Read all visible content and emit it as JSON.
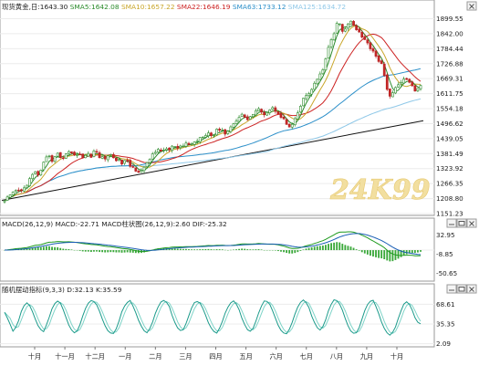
{
  "chart_data": [
    {
      "type": "candlestick",
      "panel": "price",
      "legend": [
        {
          "label": "现货黄金,日:1643.30",
          "color": "#222222"
        },
        {
          "label": "SMA5:1642.08",
          "color": "#2a8a2a"
        },
        {
          "label": "SMA10:1657.22",
          "color": "#c9a62a"
        },
        {
          "label": "SMA22:1646.19",
          "color": "#cc2222"
        },
        {
          "label": "SMA63:1733.12",
          "color": "#2b8fc9"
        },
        {
          "label": "SMA125:1634.72",
          "color": "#8fc8e8"
        }
      ],
      "ylim": [
        1151.23,
        1957.37
      ],
      "ytick_labels": [
        "1899.55",
        "1842.00",
        "1784.44",
        "1726.88",
        "1669.31",
        "1611.75",
        "1554.18",
        "1496.62",
        "1439.05",
        "1381.49",
        "1323.92",
        "1266.35",
        "1208.80",
        "1151.23"
      ],
      "xtick_labels": [
        "十月",
        "十一月",
        "十二月",
        "一月",
        "二月",
        "三月",
        "四月",
        "五月",
        "六月",
        "七月",
        "八月",
        "九月",
        "十月"
      ],
      "trendline": {
        "from": [
          0,
          1202
        ],
        "to": [
          1,
          1508
        ]
      },
      "watermark": "24K99",
      "close_series": [
        1200,
        1215,
        1228,
        1242,
        1235,
        1262,
        1288,
        1310,
        1298,
        1342,
        1372,
        1355,
        1388,
        1358,
        1378,
        1395,
        1372,
        1388,
        1362,
        1382,
        1372,
        1395,
        1368,
        1362,
        1378,
        1370,
        1358,
        1345,
        1356,
        1335,
        1322,
        1315,
        1320,
        1345,
        1378,
        1395,
        1388,
        1402,
        1395,
        1412,
        1398,
        1408,
        1422,
        1415,
        1428,
        1442,
        1455,
        1462,
        1448,
        1470,
        1482,
        1455,
        1478,
        1505,
        1520,
        1532,
        1512,
        1528,
        1542,
        1552,
        1534,
        1548,
        1556,
        1542,
        1522,
        1495,
        1478,
        1510,
        1552,
        1592,
        1612,
        1628,
        1662,
        1688,
        1735,
        1805,
        1842,
        1895,
        1845,
        1872,
        1895,
        1865,
        1845,
        1820,
        1798,
        1778,
        1748,
        1722,
        1648,
        1598,
        1625,
        1648,
        1672,
        1660,
        1642,
        1618,
        1643.3
      ],
      "macd_legend": "MACD(26,12,9) MACD:-22.71 MACD柱状图(26,12,9):2.60 DIF:-25.32",
      "macd_ylim": [
        -63.6,
        41.9
      ],
      "macd_ytick_labels": [
        "32.95",
        "-8.85",
        "-50.65"
      ],
      "stoch_legend": "随机摆动指标(9,3,3) D:32.13 K:35.59",
      "stoch_ylim": [
        0,
        86
      ],
      "stoch_ytick_labels": [
        "68.61",
        "35.35",
        "2.09"
      ],
      "stoch_k_series": [
        55,
        40,
        22,
        35,
        60,
        72,
        65,
        45,
        28,
        22,
        40,
        62,
        75,
        70,
        50,
        30,
        20,
        25,
        48,
        68,
        75,
        72,
        55,
        35,
        22,
        18,
        30,
        55,
        70,
        75,
        60,
        40,
        25,
        20,
        35,
        58,
        72,
        76,
        65,
        42,
        28,
        22,
        38,
        60,
        74,
        72,
        58,
        38,
        24,
        20,
        34,
        56,
        70,
        75,
        62,
        40,
        26,
        22,
        40,
        62,
        75,
        72,
        55,
        35,
        22,
        18,
        30,
        52,
        70,
        76,
        68,
        46,
        30,
        24,
        40,
        64,
        76,
        74,
        58,
        36,
        22,
        18,
        32,
        56,
        72,
        76,
        60,
        38,
        22,
        16,
        26,
        48,
        68,
        74,
        60,
        40,
        35.59
      ]
    }
  ]
}
